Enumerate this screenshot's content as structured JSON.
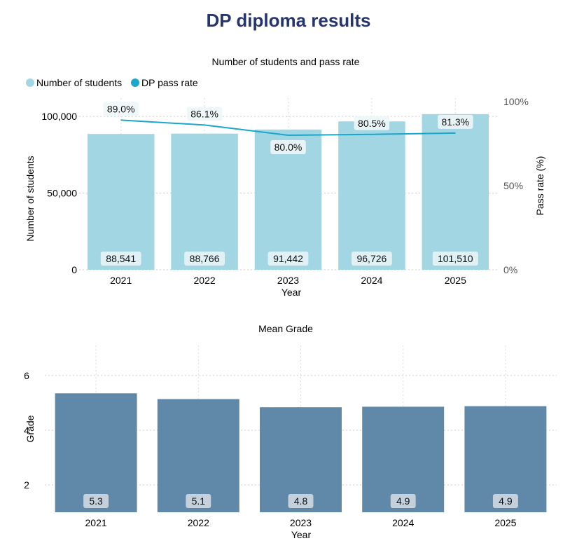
{
  "page": {
    "title": "DP diploma results"
  },
  "chart_data": [
    {
      "type": "bar",
      "title": "Number of students and pass rate",
      "xlabel": "Year",
      "ylabel": "Number of students",
      "y2label": "Pass rate (%)",
      "categories": [
        "2021",
        "2022",
        "2023",
        "2024",
        "2025"
      ],
      "ylim": [
        0,
        111000
      ],
      "y2lim": [
        0,
        100
      ],
      "yticks": [
        0,
        50000,
        100000
      ],
      "yticklabels": [
        "0",
        "50,000",
        "100,000"
      ],
      "y2ticks": [
        0,
        50,
        100
      ],
      "y2ticklabels": [
        "0%",
        "50%",
        "100%"
      ],
      "legend_position": "top-left",
      "series": [
        {
          "name": "Number of students",
          "kind": "bar",
          "color": "#a1d6e2",
          "values": [
            88541,
            88766,
            91442,
            96726,
            101510
          ],
          "labels": [
            "88,541",
            "88,766",
            "91,442",
            "96,726",
            "101,510"
          ]
        },
        {
          "name": "DP pass rate",
          "kind": "line",
          "axis": "right",
          "color": "#1ba6cc",
          "values": [
            89.0,
            86.1,
            80.0,
            80.5,
            81.3
          ],
          "labels": [
            "89.0%",
            "86.1%",
            "80.0%",
            "80.5%",
            "81.3%"
          ]
        }
      ]
    },
    {
      "type": "bar",
      "title": "Mean Grade",
      "xlabel": "Year",
      "ylabel": "Grade",
      "categories": [
        "2021",
        "2022",
        "2023",
        "2024",
        "2025"
      ],
      "ylim": [
        1,
        7.1
      ],
      "yticks": [
        2,
        4,
        6
      ],
      "yticklabels": [
        "2",
        "4",
        "6"
      ],
      "color": "#6088a8",
      "values": [
        5.35,
        5.14,
        4.84,
        4.86,
        4.88
      ],
      "labels": [
        "5.3",
        "5.1",
        "4.8",
        "4.9",
        "4.9"
      ]
    }
  ]
}
